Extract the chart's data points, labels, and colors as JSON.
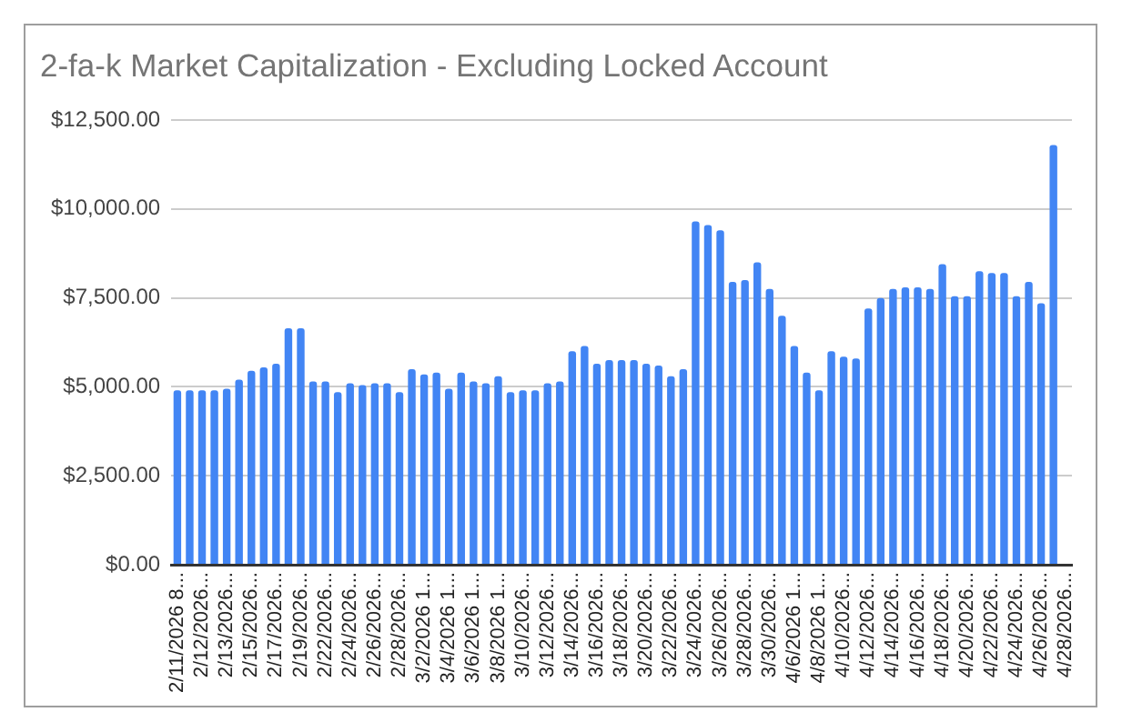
{
  "chart_data": {
    "type": "bar",
    "title": "2-fa-k Market Capitalization - Excluding Locked Account",
    "categories": [
      "2/11/2026 8...",
      null,
      "2/12/2026...",
      null,
      "2/13/2026...",
      null,
      "2/15/2026...",
      null,
      "2/17/2026...",
      null,
      "2/19/2026...",
      null,
      "2/22/2026...",
      null,
      "2/24/2026...",
      null,
      "2/26/2026...",
      null,
      "2/28/2026...",
      null,
      "3/2/2026 1...",
      null,
      "3/4/2026 1...",
      null,
      "3/6/2026 1...",
      null,
      "3/8/2026 1...",
      null,
      "3/10/2026...",
      null,
      "3/12/2026...",
      null,
      "3/14/2026...",
      null,
      "3/16/2026...",
      null,
      "3/18/2026...",
      null,
      "3/20/2026...",
      null,
      "3/22/2026...",
      null,
      "3/24/2026...",
      null,
      "3/26/2026...",
      null,
      "3/28/2026...",
      null,
      "3/30/2026...",
      null,
      "4/6/2026 1...",
      null,
      "4/8/2026 1...",
      null,
      "4/10/2026...",
      null,
      "4/12/2026...",
      null,
      "4/14/2026...",
      null,
      "4/16/2026...",
      null,
      "4/18/2026...",
      null,
      "4/20/2026...",
      null,
      "4/22/2026...",
      null,
      "4/24/2026...",
      null,
      "4/26/2026...",
      null,
      "4/28/2026..."
    ],
    "values": [
      4900,
      4900,
      4900,
      4900,
      4950,
      5200,
      5450,
      5550,
      5650,
      6650,
      6650,
      5150,
      5150,
      4850,
      5100,
      5050,
      5100,
      5100,
      4850,
      5500,
      5350,
      5400,
      4950,
      5400,
      5150,
      5100,
      5300,
      4850,
      4900,
      4900,
      5100,
      5150,
      6000,
      6150,
      5650,
      5750,
      5750,
      5750,
      5650,
      5600,
      5300,
      5500,
      9650,
      9550,
      9400,
      7950,
      8000,
      8500,
      7750,
      7000,
      6150,
      5400,
      4900,
      6000,
      5850,
      5800,
      7200,
      7500,
      7750,
      7800,
      7800,
      7750,
      8450,
      7550,
      7550,
      8250,
      8200,
      8200,
      7550,
      7950,
      7350,
      11800,
      null
    ],
    "color": "#4285f4",
    "ylim": [
      0,
      12500
    ],
    "yticks": [
      {
        "value": 0,
        "label": "$0.00"
      },
      {
        "value": 2500,
        "label": "$2,500.00"
      },
      {
        "value": 5000,
        "label": "$5,000.00"
      },
      {
        "value": 7500,
        "label": "$7,500.00"
      },
      {
        "value": 10000,
        "label": "$10,000.00"
      },
      {
        "value": 12500,
        "label": "$12,500.00"
      }
    ],
    "grid": "y"
  }
}
